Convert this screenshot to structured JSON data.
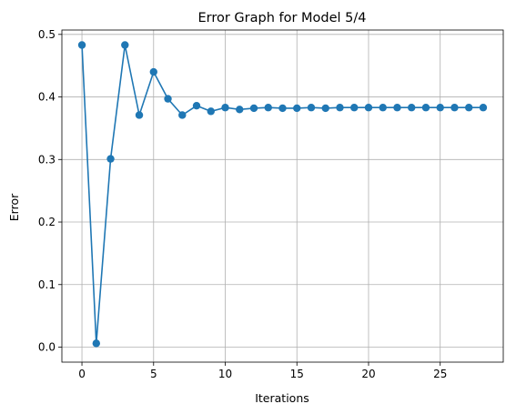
{
  "chart_data": {
    "type": "line",
    "title": "Error Graph for Model 5/4",
    "xlabel": "Iterations",
    "ylabel": "Error",
    "xlim": [
      -1.4,
      29.4
    ],
    "ylim": [
      -0.024,
      0.507
    ],
    "xticks": [
      0,
      5,
      10,
      15,
      20,
      25
    ],
    "yticks": [
      0.0,
      0.1,
      0.2,
      0.3,
      0.4,
      0.5
    ],
    "grid": true,
    "colors": {
      "series": "#1f77b4"
    },
    "series": [
      {
        "x": [
          0,
          1,
          2,
          3,
          4,
          5,
          6,
          7,
          8,
          9,
          10,
          11,
          12,
          13,
          14,
          15,
          16,
          17,
          18,
          19,
          20,
          21,
          22,
          23,
          24,
          25,
          26,
          27,
          28
        ],
        "values": [
          0.483,
          0.006,
          0.301,
          0.483,
          0.371,
          0.44,
          0.397,
          0.371,
          0.386,
          0.377,
          0.383,
          0.38,
          0.382,
          0.383,
          0.382,
          0.382,
          0.383,
          0.382,
          0.383,
          0.383,
          0.383,
          0.383,
          0.383,
          0.383,
          0.383,
          0.383,
          0.383,
          0.383,
          0.383
        ]
      }
    ]
  }
}
